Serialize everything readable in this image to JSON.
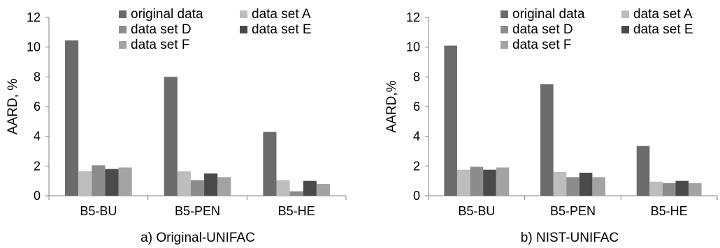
{
  "series_colors": [
    "#6b6b6b",
    "#bdbdbd",
    "#8c8c8c",
    "#4a4a4a",
    "#a3a3a3"
  ],
  "chart_data": [
    {
      "type": "bar",
      "title": "a) Original-UNIFAC",
      "ylabel": "AARD, %",
      "xlabel": "",
      "ylim": [
        0,
        12
      ],
      "yticks": [
        "0",
        "2",
        "4",
        "6",
        "8",
        "10",
        "12"
      ],
      "legend": "top",
      "grid": false,
      "categories": [
        "B5-BU",
        "B5-PEN",
        "B5-HE"
      ],
      "series": [
        {
          "name": "original data",
          "values": [
            10.45,
            8.0,
            4.3
          ]
        },
        {
          "name": "data set A",
          "values": [
            1.65,
            1.65,
            1.05
          ]
        },
        {
          "name": "data set D",
          "values": [
            2.05,
            1.05,
            0.3
          ]
        },
        {
          "name": "data set E",
          "values": [
            1.8,
            1.5,
            1.0
          ]
        },
        {
          "name": "data set F",
          "values": [
            1.9,
            1.25,
            0.8
          ]
        }
      ]
    },
    {
      "type": "bar",
      "title": "b) NIST-UNIFAC",
      "ylabel": "AARD,%",
      "xlabel": "",
      "ylim": [
        0,
        12
      ],
      "yticks": [
        "0",
        "2",
        "4",
        "6",
        "8",
        "10",
        "12"
      ],
      "legend": "top",
      "grid": false,
      "categories": [
        "B5-BU",
        "B5-PEN",
        "B5-HE"
      ],
      "series": [
        {
          "name": "original data",
          "values": [
            10.1,
            7.5,
            3.35
          ]
        },
        {
          "name": "data set A",
          "values": [
            1.75,
            1.6,
            0.95
          ]
        },
        {
          "name": "data set D",
          "values": [
            1.95,
            1.25,
            0.85
          ]
        },
        {
          "name": "data set E",
          "values": [
            1.75,
            1.55,
            1.0
          ]
        },
        {
          "name": "data set F",
          "values": [
            1.9,
            1.25,
            0.85
          ]
        }
      ]
    }
  ]
}
